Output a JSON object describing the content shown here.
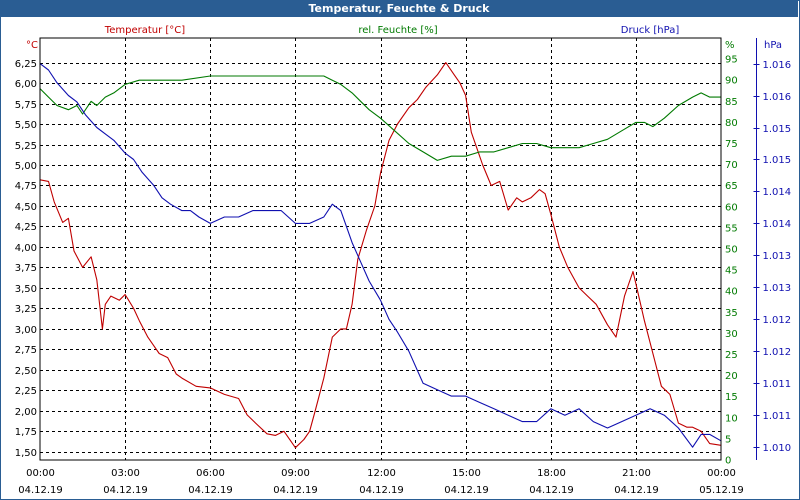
{
  "title": "Temperatur, Feuchte & Druck",
  "colors": {
    "title_bg": "#2a5d93",
    "temperature": "#c00000",
    "humidity": "#007a00",
    "pressure": "#1010b0",
    "grid": "#000000",
    "text": "#000000"
  },
  "chart_data": {
    "type": "line",
    "title": "Temperatur, Feuchte & Druck",
    "x_range_hours": [
      0,
      24
    ],
    "x_ticks": [
      {
        "time": "00:00",
        "date": "04.12.19"
      },
      {
        "time": "03:00",
        "date": "04.12.19"
      },
      {
        "time": "06:00",
        "date": "04.12.19"
      },
      {
        "time": "09:00",
        "date": "04.12.19"
      },
      {
        "time": "12:00",
        "date": "04.12.19"
      },
      {
        "time": "15:00",
        "date": "04.12.19"
      },
      {
        "time": "18:00",
        "date": "04.12.19"
      },
      {
        "time": "21:00",
        "date": "04.12.19"
      },
      {
        "time": "00:00",
        "date": "05.12.19"
      }
    ],
    "axes": {
      "temperature": {
        "unit": "°C",
        "range": [
          1.4,
          6.55
        ],
        "ticks": [
          "6,25",
          "6,00",
          "5,75",
          "5,50",
          "5,25",
          "5,00",
          "4,75",
          "4,50",
          "4,25",
          "4,00",
          "3,75",
          "3,50",
          "3,25",
          "3,00",
          "2,75",
          "2,50",
          "2,25",
          "2,00",
          "1,75",
          "1,50"
        ],
        "tick_values": [
          6.25,
          6.0,
          5.75,
          5.5,
          5.25,
          5.0,
          4.75,
          4.5,
          4.25,
          4.0,
          3.75,
          3.5,
          3.25,
          3.0,
          2.75,
          2.5,
          2.25,
          2.0,
          1.75,
          1.5
        ]
      },
      "humidity": {
        "unit": "%",
        "range": [
          0,
          100
        ],
        "ticks": [
          "95",
          "90",
          "85",
          "80",
          "75",
          "70",
          "65",
          "60",
          "55",
          "50",
          "45",
          "40",
          "35",
          "30",
          "25",
          "20",
          "15",
          "10",
          "5",
          "0"
        ],
        "tick_values": [
          95,
          90,
          85,
          80,
          75,
          70,
          65,
          60,
          55,
          50,
          45,
          40,
          35,
          30,
          25,
          20,
          15,
          10,
          5,
          0
        ]
      },
      "pressure": {
        "unit": "hPa",
        "range": [
          1009.8,
          1016.4
        ],
        "ticks": [
          "1.016",
          "1.016",
          "1.015",
          "1.015",
          "1.014",
          "1.014",
          "1.013",
          "1.013",
          "1.012",
          "1.012",
          "1.011",
          "1.011",
          "1.010"
        ],
        "tick_values": [
          1016.0,
          1015.5,
          1015.0,
          1014.5,
          1014.0,
          1013.5,
          1013.0,
          1012.5,
          1012.0,
          1011.5,
          1011.0,
          1010.5,
          1010.0
        ]
      }
    },
    "series": [
      {
        "name": "Temperatur [°C]",
        "axis": "temperature",
        "x": [
          0,
          0.3,
          0.5,
          0.8,
          1.0,
          1.2,
          1.5,
          1.8,
          2.0,
          2.2,
          2.3,
          2.5,
          2.8,
          3.0,
          3.3,
          3.5,
          3.8,
          4.0,
          4.2,
          4.5,
          4.8,
          5.0,
          5.5,
          6.0,
          6.5,
          7.0,
          7.3,
          7.6,
          8.0,
          8.3,
          8.6,
          9.0,
          9.3,
          9.5,
          9.7,
          10.0,
          10.3,
          10.6,
          10.8,
          11.0,
          11.2,
          11.5,
          11.8,
          12.0,
          12.3,
          12.6,
          13.0,
          13.3,
          13.6,
          14.0,
          14.3,
          14.6,
          14.8,
          15.0,
          15.2,
          15.4,
          15.6,
          15.9,
          16.2,
          16.5,
          16.8,
          17.0,
          17.3,
          17.6,
          17.8,
          18.0,
          18.3,
          18.6,
          19.0,
          19.3,
          19.6,
          20.0,
          20.3,
          20.6,
          20.9,
          21.0,
          21.3,
          21.6,
          21.9,
          22.2,
          22.5,
          22.8,
          23.0,
          23.3,
          23.6,
          24.0
        ],
        "values": [
          4.82,
          4.8,
          4.55,
          4.3,
          4.35,
          3.95,
          3.75,
          3.88,
          3.6,
          3.0,
          3.3,
          3.4,
          3.35,
          3.42,
          3.25,
          3.1,
          2.9,
          2.8,
          2.7,
          2.65,
          2.45,
          2.4,
          2.3,
          2.28,
          2.2,
          2.15,
          1.95,
          1.85,
          1.72,
          1.7,
          1.75,
          1.55,
          1.65,
          1.75,
          2.0,
          2.4,
          2.9,
          3.0,
          3.0,
          3.3,
          3.85,
          4.2,
          4.5,
          4.9,
          5.3,
          5.5,
          5.7,
          5.8,
          5.95,
          6.1,
          6.25,
          6.1,
          6.0,
          5.85,
          5.4,
          5.2,
          5.0,
          4.75,
          4.8,
          4.45,
          4.6,
          4.55,
          4.6,
          4.7,
          4.65,
          4.4,
          4.0,
          3.75,
          3.5,
          3.4,
          3.3,
          3.05,
          2.9,
          3.4,
          3.7,
          3.55,
          3.1,
          2.7,
          2.3,
          2.2,
          1.85,
          1.8,
          1.8,
          1.75,
          1.6,
          1.58
        ]
      },
      {
        "name": "rel. Feuchte [%]",
        "axis": "humidity",
        "x": [
          0,
          0.3,
          0.6,
          1.0,
          1.3,
          1.5,
          1.8,
          2.0,
          2.3,
          2.6,
          3.0,
          3.5,
          4.0,
          4.5,
          5.0,
          6.0,
          7.0,
          8.0,
          8.5,
          9.0,
          9.5,
          10.0,
          10.3,
          10.6,
          11.0,
          11.3,
          11.6,
          12.0,
          12.5,
          13.0,
          13.5,
          14.0,
          14.5,
          15.0,
          15.5,
          16.0,
          16.5,
          17.0,
          17.5,
          18.0,
          18.5,
          19.0,
          19.5,
          20.0,
          20.5,
          21.0,
          21.3,
          21.6,
          22.0,
          22.5,
          23.0,
          23.3,
          23.6,
          24.0
        ],
        "values": [
          88,
          86,
          84,
          83,
          84,
          82,
          85,
          84,
          86,
          87,
          89,
          90,
          90,
          90,
          90,
          91,
          91,
          91,
          91,
          91,
          91,
          91,
          90,
          89,
          87,
          85,
          83,
          81,
          78,
          75,
          73,
          71,
          72,
          72,
          73,
          73,
          74,
          75,
          75,
          74,
          74,
          74,
          75,
          76,
          78,
          80,
          80,
          79,
          81,
          84,
          86,
          87,
          86,
          86
        ]
      },
      {
        "name": "Druck [hPa]",
        "axis": "pressure",
        "x": [
          0,
          0.3,
          0.6,
          1.0,
          1.3,
          1.6,
          2.0,
          2.3,
          2.6,
          3.0,
          3.3,
          3.6,
          4.0,
          4.3,
          4.6,
          5.0,
          5.3,
          5.6,
          6.0,
          6.5,
          7.0,
          7.5,
          8.0,
          8.5,
          9.0,
          9.5,
          10.0,
          10.3,
          10.6,
          11.0,
          11.3,
          11.6,
          12.0,
          12.3,
          12.6,
          13.0,
          13.5,
          14.0,
          14.5,
          15.0,
          15.5,
          16.0,
          16.5,
          17.0,
          17.5,
          18.0,
          18.5,
          19.0,
          19.5,
          20.0,
          20.5,
          21.0,
          21.5,
          22.0,
          22.5,
          23.0,
          23.3,
          23.6,
          24.0
        ],
        "values": [
          1016.0,
          1015.9,
          1015.7,
          1015.5,
          1015.4,
          1015.2,
          1015.0,
          1014.9,
          1014.8,
          1014.6,
          1014.5,
          1014.3,
          1014.1,
          1013.9,
          1013.8,
          1013.7,
          1013.7,
          1013.6,
          1013.5,
          1013.6,
          1013.6,
          1013.7,
          1013.7,
          1013.7,
          1013.5,
          1013.5,
          1013.6,
          1013.8,
          1013.7,
          1013.2,
          1012.9,
          1012.6,
          1012.3,
          1012.0,
          1011.8,
          1011.5,
          1011.0,
          1010.9,
          1010.8,
          1010.8,
          1010.7,
          1010.6,
          1010.5,
          1010.4,
          1010.4,
          1010.6,
          1010.5,
          1010.6,
          1010.4,
          1010.3,
          1010.4,
          1010.5,
          1010.6,
          1010.5,
          1010.3,
          1010.0,
          1010.2,
          1010.2,
          1010.1
        ]
      }
    ]
  }
}
